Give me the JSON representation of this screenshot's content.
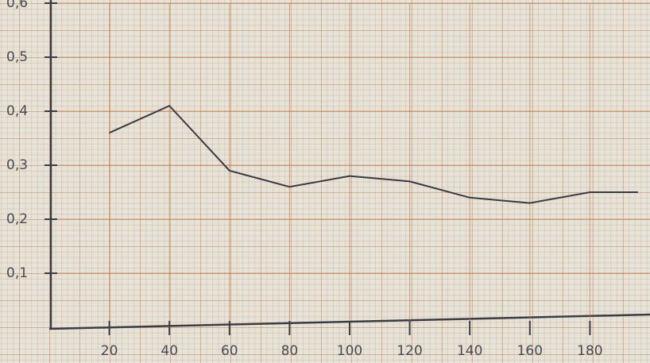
{
  "chart_data": {
    "type": "line",
    "x": [
      20,
      40,
      60,
      80,
      100,
      120,
      140,
      160,
      180,
      196
    ],
    "series": [
      {
        "color": "#3a3a42",
        "values": [
          0.36,
          0.41,
          0.29,
          0.26,
          0.28,
          0.27,
          0.24,
          0.23,
          0.25,
          0.25
        ]
      }
    ],
    "xlim": [
      0,
      200
    ],
    "ylim": [
      0,
      0.6
    ],
    "xticks": [
      20,
      40,
      60,
      80,
      100,
      120,
      140,
      160,
      180
    ],
    "yticks": [
      {
        "value": 0.1,
        "label": "0,1"
      },
      {
        "value": 0.2,
        "label": "0,2"
      },
      {
        "value": 0.3,
        "label": "0,3"
      },
      {
        "value": 0.4,
        "label": "0,4"
      },
      {
        "value": 0.5,
        "label": "0,5"
      },
      {
        "value": 0.6,
        "label": "0,6"
      }
    ],
    "grid": true
  }
}
